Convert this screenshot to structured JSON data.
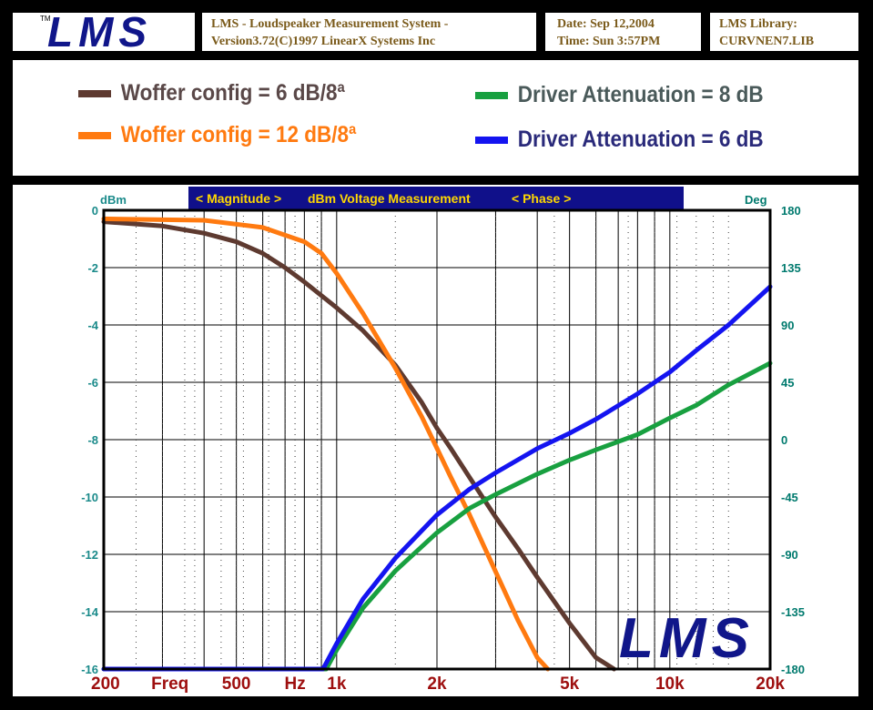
{
  "header": {
    "logo_text": "LMS",
    "logo_tm": "TM",
    "app_title_line1": "LMS - Loudspeaker Measurement System -",
    "app_title_line2": "Version3.72(C)1997 LinearX Systems Inc",
    "date_line": "Date: Sep 12,2004",
    "time_line": "Time: Sun  3:57PM",
    "library_label": "LMS Library:",
    "library_file": "CURVNEN7.LIB"
  },
  "legend": [
    {
      "label": "Woffer config = 6 dB/8ª",
      "color": "#5e3a30"
    },
    {
      "label": "Woffer config = 12 dB/8ª",
      "color": "#ff7a10"
    },
    {
      "label": "Driver Attenuation = 8 dB",
      "color": "#18a040"
    },
    {
      "label": "Driver Attenuation = 6 dB",
      "color": "#1414f0"
    }
  ],
  "chart_header": {
    "left_unit": "dBm",
    "right_unit": "Deg",
    "magnitude_label": "< Magnitude >",
    "measurement_label": "dBm Voltage Measurement",
    "phase_label": "< Phase >"
  },
  "watermark": "LMS",
  "chart_data": {
    "type": "line",
    "x_scale": "log",
    "xlim": [
      200,
      20000
    ],
    "ylim_left": [
      -16,
      0
    ],
    "ylim_right": [
      -180,
      180
    ],
    "x_ticks": [
      {
        "value": 200,
        "label": "200"
      },
      {
        "value": 500,
        "label": "500"
      },
      {
        "value": 1000,
        "label": "1k"
      },
      {
        "value": 2000,
        "label": "2k"
      },
      {
        "value": 5000,
        "label": "5k"
      },
      {
        "value": 10000,
        "label": "10k"
      },
      {
        "value": 20000,
        "label": "20k"
      }
    ],
    "x_axis_words": [
      {
        "value": 316,
        "label": "Freq"
      },
      {
        "value": 750,
        "label": "Hz"
      }
    ],
    "y_left_ticks": [
      "0",
      "-2",
      "-4",
      "-6",
      "-8",
      "-10",
      "-12",
      "-14",
      "-16"
    ],
    "y_right_ticks": [
      "180",
      "135",
      "90",
      "45",
      "0",
      "-45",
      "-90",
      "-135",
      "-180"
    ],
    "colors": {
      "left_axis": "#1a8a8a",
      "right_axis": "#007a6e",
      "x_axis": "#9e0f0f"
    },
    "series": [
      {
        "name": "Woffer config = 6 dB/8ª",
        "axis": "left",
        "color": "#5e3a30",
        "x": [
          200,
          300,
          400,
          500,
          600,
          700,
          800,
          1000,
          1200,
          1500,
          1800,
          2000,
          2200,
          2500,
          3000,
          3500,
          4000,
          5000,
          6000,
          6800
        ],
        "y": [
          -0.4,
          -0.55,
          -0.8,
          -1.1,
          -1.5,
          -2.0,
          -2.5,
          -3.4,
          -4.2,
          -5.4,
          -6.7,
          -7.6,
          -8.3,
          -9.3,
          -10.7,
          -11.8,
          -12.8,
          -14.4,
          -15.6,
          -16
        ]
      },
      {
        "name": "Woffer config = 12 dB/8ª",
        "axis": "left",
        "color": "#ff7a10",
        "x": [
          200,
          400,
          600,
          800,
          900,
          1000,
          1200,
          1500,
          1800,
          2000,
          2200,
          2500,
          3000,
          3500,
          4000,
          4300
        ],
        "y": [
          -0.3,
          -0.35,
          -0.6,
          -1.1,
          -1.5,
          -2.2,
          -3.6,
          -5.5,
          -7.2,
          -8.3,
          -9.3,
          -10.6,
          -12.6,
          -14.3,
          -15.6,
          -16
        ]
      },
      {
        "name": "Driver Attenuation = 8 dB",
        "axis": "right",
        "color": "#18a040",
        "x": [
          200,
          930,
          1000,
          1200,
          1500,
          2000,
          2500,
          3000,
          4000,
          5000,
          6000,
          8000,
          10000,
          12000,
          15000,
          20000
        ],
        "y": [
          -180,
          -180,
          -165,
          -132,
          -103,
          -73,
          -54,
          -43,
          -27,
          -16,
          -8,
          4,
          17,
          27,
          43,
          60
        ]
      },
      {
        "name": "Driver Attenuation = 6 dB",
        "axis": "right",
        "color": "#1414f0",
        "x": [
          200,
          910,
          1000,
          1200,
          1500,
          2000,
          2500,
          3000,
          4000,
          5000,
          6000,
          8000,
          10000,
          12000,
          15000,
          20000
        ],
        "y": [
          -180,
          -180,
          -160,
          -125,
          -93,
          -59,
          -39,
          -26,
          -7,
          5,
          16,
          36,
          53,
          70,
          90,
          120
        ]
      }
    ]
  }
}
